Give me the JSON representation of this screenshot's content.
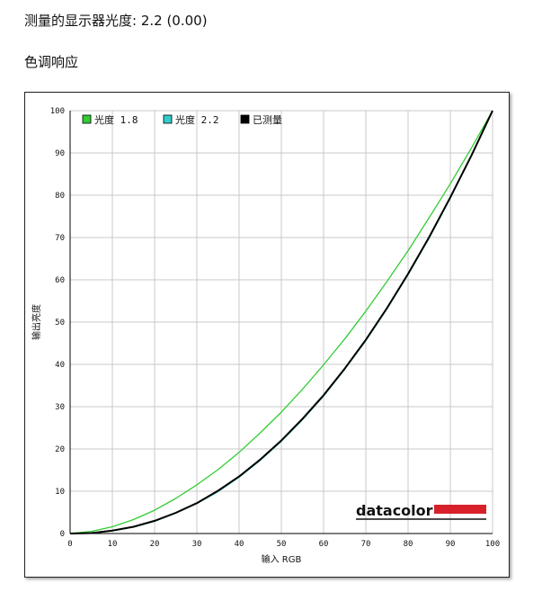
{
  "page": {
    "gamma_heading": "测量的显示器光度:  2.2 (0.00)",
    "section_title": "色调响应"
  },
  "brand": {
    "logo_text": "datacolor",
    "bar_color": "#d7202a"
  },
  "chart_data": {
    "type": "line",
    "title": "",
    "xlabel": "输入 RGB",
    "ylabel": "输出亮度",
    "xlim": [
      0,
      100
    ],
    "ylim": [
      0,
      100
    ],
    "xticks": [
      0,
      10,
      20,
      30,
      40,
      50,
      60,
      70,
      80,
      90,
      100
    ],
    "yticks": [
      0,
      10,
      20,
      30,
      40,
      50,
      60,
      70,
      80,
      90,
      100
    ],
    "grid": true,
    "legend_position": "top-left",
    "x": [
      0,
      5,
      10,
      15,
      20,
      25,
      30,
      35,
      40,
      45,
      50,
      55,
      60,
      65,
      70,
      75,
      80,
      85,
      90,
      95,
      100
    ],
    "series": [
      {
        "name": "光度 1.8",
        "color": "#33cc33",
        "values": [
          0,
          0.5,
          1.6,
          3.3,
          5.5,
          8.3,
          11.5,
          15.1,
          19.2,
          23.8,
          28.7,
          34.1,
          39.9,
          46.0,
          52.6,
          59.6,
          66.9,
          74.7,
          82.7,
          91.2,
          100
        ]
      },
      {
        "name": "光度 2.2",
        "color": "#33cccc",
        "values": [
          0,
          0.1,
          0.6,
          1.5,
          2.9,
          4.8,
          7.1,
          9.9,
          13.3,
          17.3,
          21.8,
          26.9,
          32.5,
          38.8,
          45.6,
          53.1,
          61.2,
          69.9,
          79.3,
          89.3,
          100
        ]
      },
      {
        "name": "已测量",
        "color": "#000000",
        "values": [
          0,
          0.1,
          0.7,
          1.6,
          3.0,
          4.9,
          7.2,
          10.1,
          13.5,
          17.5,
          22.0,
          27.1,
          32.7,
          39.0,
          45.8,
          53.3,
          61.4,
          70.1,
          79.5,
          89.4,
          100
        ]
      }
    ]
  }
}
